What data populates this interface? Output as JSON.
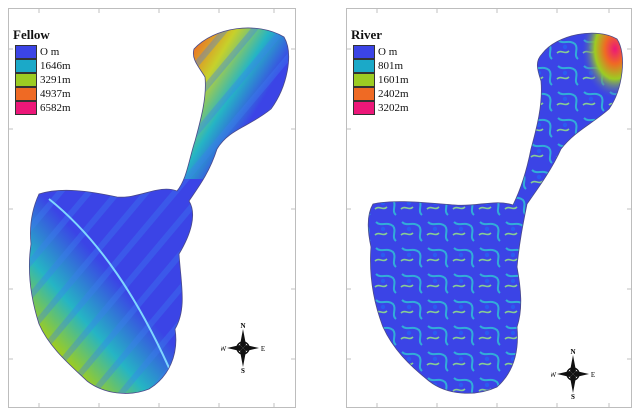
{
  "maps": [
    {
      "title": "Fellow",
      "legend": [
        {
          "label": "O m",
          "color": "#3b44e6"
        },
        {
          "label": "1646m",
          "color": "#1ba9c8"
        },
        {
          "label": "3291m",
          "color": "#9ccc23"
        },
        {
          "label": "4937m",
          "color": "#ef6a24"
        },
        {
          "label": "6582m",
          "color": "#ec1779"
        }
      ],
      "compass": {
        "n": "N",
        "s": "S",
        "e": "E",
        "w": "W"
      }
    },
    {
      "title": "River",
      "legend": [
        {
          "label": "O m",
          "color": "#3b44e6"
        },
        {
          "label": "801m",
          "color": "#1ba9c8"
        },
        {
          "label": "1601m",
          "color": "#9ccc23"
        },
        {
          "label": "2402m",
          "color": "#ef6a24"
        },
        {
          "label": "3202m",
          "color": "#ec1779"
        }
      ],
      "compass": {
        "n": "N",
        "s": "S",
        "e": "E",
        "w": "W"
      }
    }
  ]
}
